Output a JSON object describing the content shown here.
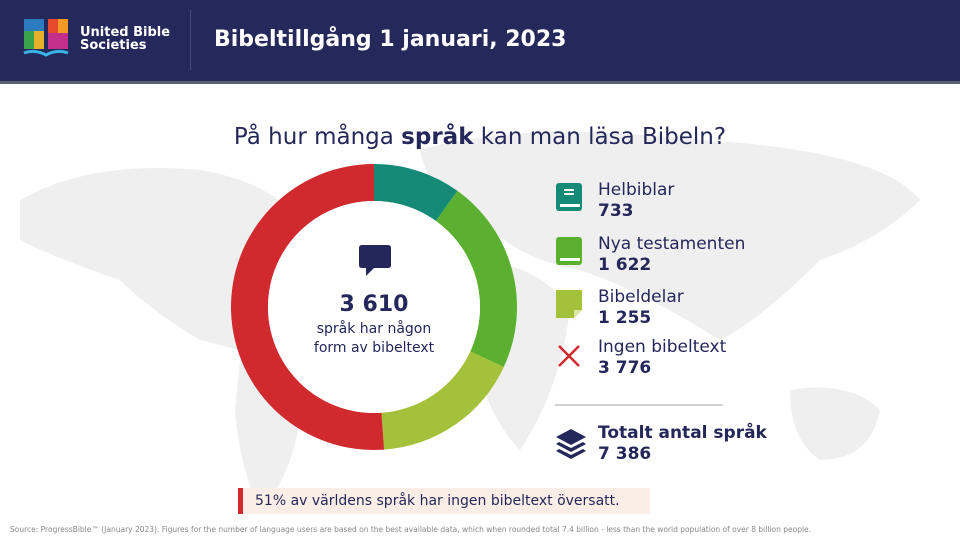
{
  "header": {
    "org_name_line1": "United Bible",
    "org_name_line2": "Societies",
    "title": "Bibeltillgång 1 januari, 2023"
  },
  "question": {
    "before": "På hur många ",
    "bold": "språk",
    "after": " kan man läsa Bibeln?"
  },
  "center": {
    "icon": "speech-bubble-icon",
    "number": "3 610",
    "text_line1": "språk har någon",
    "text_line2": "form av bibeltext"
  },
  "legend": [
    {
      "label": "Helbiblar",
      "value": "733",
      "icon": "book-icon",
      "color": "#158a76"
    },
    {
      "label": "Nya testamenten",
      "value": "1 622",
      "icon": "book-icon",
      "color": "#5bb030"
    },
    {
      "label": "Bibeldelar",
      "value": "1 255",
      "icon": "page-icon",
      "color": "#a3c13a"
    },
    {
      "label": "Ingen bibeltext",
      "value": "3 776",
      "icon": "x-icon",
      "color": "#d0292e"
    }
  ],
  "total": {
    "label": "Totalt antal språk",
    "value": "7 386",
    "icon": "layers-icon"
  },
  "note": "51% av världens språk har ingen bibeltext översatt.",
  "source": "Source: ProgressBible™ (January 2023). Figures for the number of language users are based on the best available data, which when rounded total 7.4 billion - less than the world population of over 8 billion people.",
  "chart_data": {
    "type": "pie",
    "variant": "donut",
    "title": "På hur många språk kan man läsa Bibeln?",
    "categories": [
      "Helbiblar",
      "Nya testamenten",
      "Bibeldelar",
      "Ingen bibeltext"
    ],
    "values": [
      733,
      1622,
      1255,
      3776
    ],
    "colors": [
      "#158a76",
      "#5bb030",
      "#a3c13a",
      "#d0292e"
    ],
    "start": "top",
    "direction": "clockwise"
  }
}
